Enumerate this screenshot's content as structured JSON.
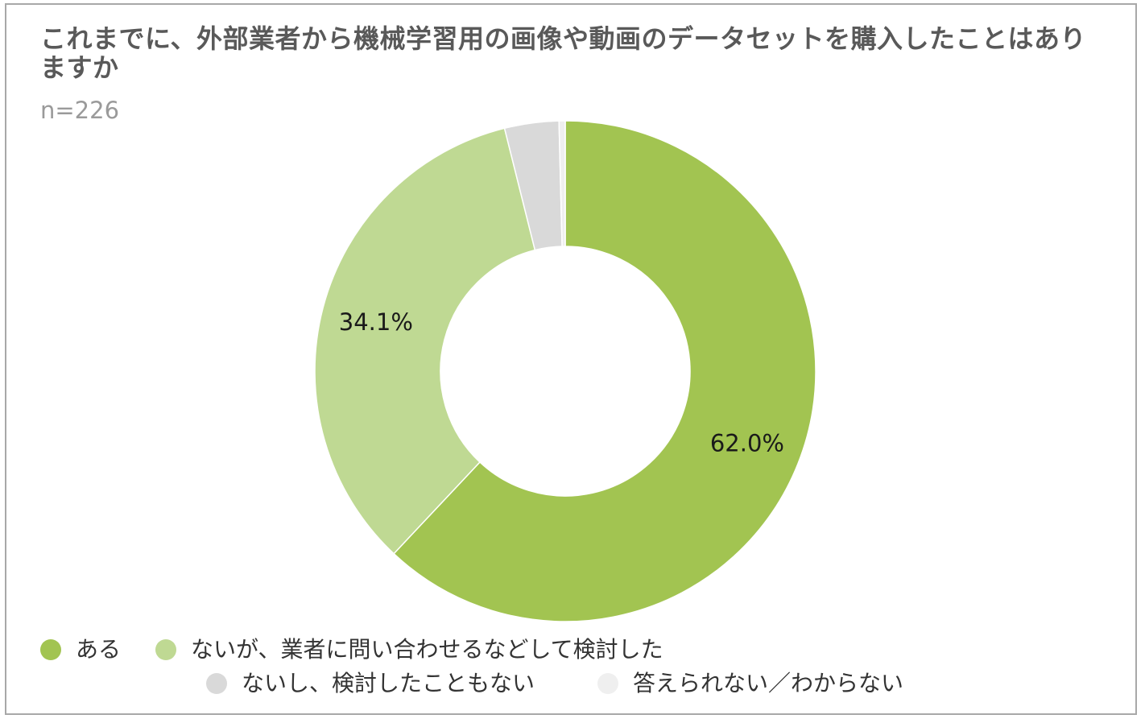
{
  "chart_data": {
    "type": "pie",
    "donut": true,
    "title": "これまでに、外部業者から機械学習用の画像や動画のデータセットを購入したことはありますか",
    "subtitle": "n=226",
    "categories": [
      "ある",
      "ないが、業者に問い合わせるなどして検討した",
      "ないし、検討したこともない",
      "答えられない／わからない"
    ],
    "values": [
      62.0,
      34.1,
      3.5,
      0.4
    ],
    "data_labels": [
      "62.0%",
      "34.1%",
      "",
      ""
    ],
    "colors": [
      "#a2c451",
      "#bfd993",
      "#d9d9d9",
      "#efefef"
    ],
    "legend_position": "bottom"
  }
}
